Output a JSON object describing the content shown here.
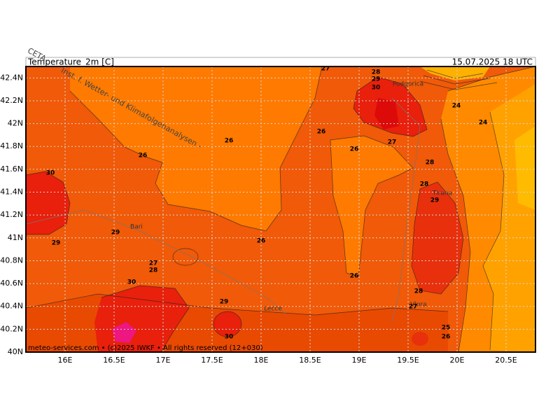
{
  "header": {
    "title": "Temperature_2m [C]",
    "valid": "15.07.2025 18 UTC"
  },
  "watermark": {
    "org": "CETA",
    "institute": "Inst. f. Wetter- und Klimafolgenanalysen -"
  },
  "map": {
    "xlim": [
      15.6,
      20.8
    ],
    "ylim": [
      40,
      42.5
    ],
    "grid": true,
    "xticks": [
      {
        "value": 16,
        "label": "16E"
      },
      {
        "value": 16.5,
        "label": "16.5E"
      },
      {
        "value": 17,
        "label": "17E"
      },
      {
        "value": 17.5,
        "label": "17.5E"
      },
      {
        "value": 18,
        "label": "18E"
      },
      {
        "value": 18.5,
        "label": "18.5E"
      },
      {
        "value": 19,
        "label": "19E"
      },
      {
        "value": 19.5,
        "label": "19.5E"
      },
      {
        "value": 20,
        "label": "20E"
      },
      {
        "value": 20.5,
        "label": "20.5E"
      }
    ],
    "yticks": [
      {
        "value": 40,
        "label": "40N"
      },
      {
        "value": 40.2,
        "label": "40.2N"
      },
      {
        "value": 40.4,
        "label": "40.4N"
      },
      {
        "value": 40.6,
        "label": "40.6N"
      },
      {
        "value": 40.8,
        "label": "40.8N"
      },
      {
        "value": 41,
        "label": "41N"
      },
      {
        "value": 41.2,
        "label": "41.2N"
      },
      {
        "value": 41.4,
        "label": "41.4N"
      },
      {
        "value": 41.6,
        "label": "41.6N"
      },
      {
        "value": 41.8,
        "label": "41.8N"
      },
      {
        "value": 42,
        "label": "42N"
      },
      {
        "value": 42.2,
        "label": "42.2N"
      },
      {
        "value": 42.4,
        "label": "42.4N"
      }
    ],
    "places": [
      "Podgorica",
      "Tirana",
      "Bari",
      "Lecce",
      "Vlora"
    ],
    "contour_labels": [
      27,
      28,
      29,
      30,
      24,
      24,
      26,
      26,
      27,
      28,
      28,
      29,
      26,
      26,
      30,
      29,
      29,
      26,
      27,
      28,
      26,
      30,
      28,
      27,
      29,
      25,
      26,
      30
    ]
  },
  "footer": "meteo-services.com • (c)2025 IWKF • All rights reserved (12+030)"
}
